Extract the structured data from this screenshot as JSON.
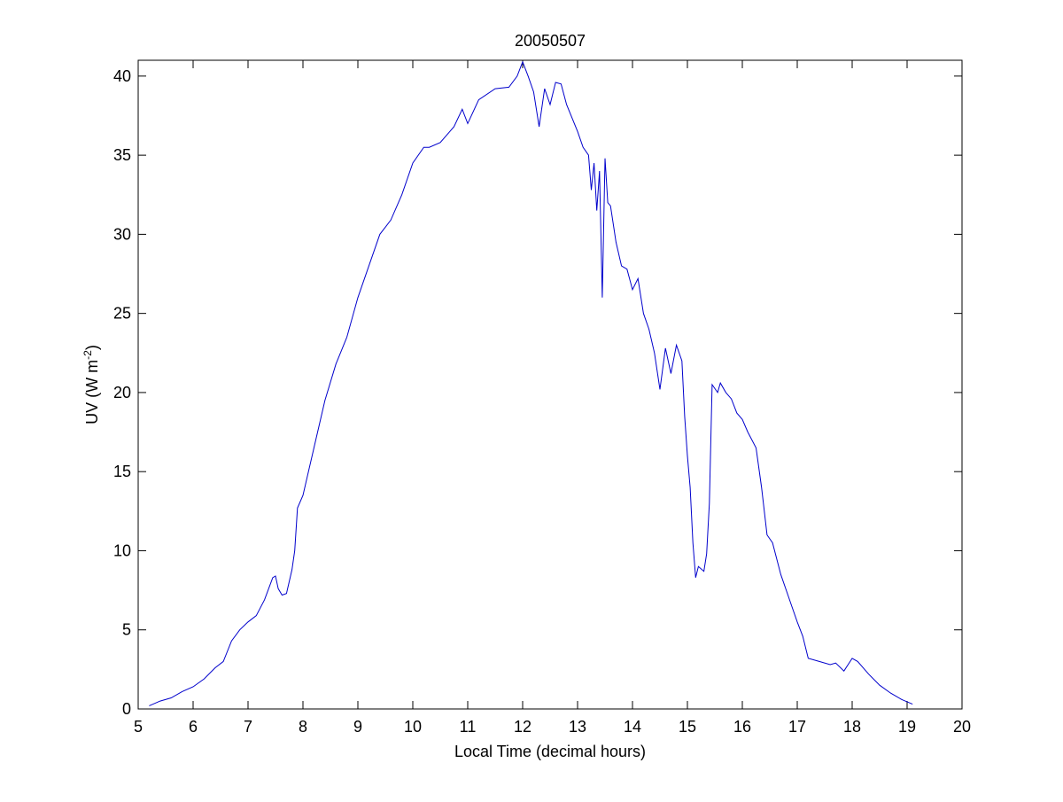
{
  "chart_data": {
    "type": "line",
    "title": "20050507",
    "xlabel": "Local Time (decimal hours)",
    "ylabel_main": "UV (W m",
    "ylabel_sup": "-2",
    "ylabel_close": ")",
    "xlim": [
      5,
      20
    ],
    "ylim": [
      0,
      41
    ],
    "xticks": [
      5,
      6,
      7,
      8,
      9,
      10,
      11,
      12,
      13,
      14,
      15,
      16,
      17,
      18,
      19,
      20
    ],
    "yticks": [
      0,
      5,
      10,
      15,
      20,
      25,
      30,
      35,
      40
    ],
    "grid": false,
    "line_color": "#0000cc",
    "series": [
      {
        "x": [
          5.2,
          5.4,
          5.6,
          5.8,
          6.0,
          6.2,
          6.4,
          6.55,
          6.7,
          6.85,
          7.0,
          7.15,
          7.3,
          7.45,
          7.5,
          7.55,
          7.62,
          7.7,
          7.8,
          7.85,
          7.9,
          8.0,
          8.2,
          8.4,
          8.6,
          8.8,
          9.0,
          9.2,
          9.4,
          9.6,
          9.8,
          10.0,
          10.2,
          10.3,
          10.5,
          10.75,
          10.9,
          11.0,
          11.2,
          11.5,
          11.75,
          11.9,
          12.0,
          12.1,
          12.2,
          12.3,
          12.4,
          12.5,
          12.6,
          12.7,
          12.8,
          13.0,
          13.1,
          13.2,
          13.25,
          13.3,
          13.35,
          13.4,
          13.45,
          13.5,
          13.55,
          13.6,
          13.7,
          13.8,
          13.9,
          14.0,
          14.1,
          14.2,
          14.3,
          14.4,
          14.5,
          14.55,
          14.6,
          14.7,
          14.8,
          14.9,
          14.95,
          15.0,
          15.05,
          15.1,
          15.15,
          15.2,
          15.3,
          15.35,
          15.4,
          15.45,
          15.55,
          15.6,
          15.7,
          15.8,
          15.9,
          16.0,
          16.1,
          16.25,
          16.35,
          16.45,
          16.55,
          16.7,
          16.9,
          17.0,
          17.1,
          17.2,
          17.4,
          17.6,
          17.7,
          17.85,
          18.0,
          18.1,
          18.3,
          18.5,
          18.7,
          18.9,
          19.1
        ],
        "y": [
          0.2,
          0.5,
          0.7,
          1.1,
          1.4,
          1.9,
          2.6,
          3.0,
          4.3,
          5.0,
          5.5,
          5.9,
          6.9,
          8.3,
          8.4,
          7.6,
          7.2,
          7.3,
          8.8,
          10.0,
          12.7,
          13.5,
          16.5,
          19.5,
          21.8,
          23.5,
          26.0,
          28.0,
          30.0,
          30.9,
          32.5,
          34.5,
          35.5,
          35.5,
          35.8,
          36.8,
          37.9,
          37.0,
          38.5,
          39.2,
          39.3,
          40.0,
          40.9,
          40.0,
          39.0,
          36.8,
          39.2,
          38.2,
          39.6,
          39.5,
          38.2,
          36.5,
          35.5,
          35.0,
          32.8,
          34.5,
          31.5,
          34.0,
          26.0,
          34.8,
          32.0,
          31.8,
          29.5,
          28.0,
          27.8,
          26.5,
          27.2,
          25.0,
          24.0,
          22.5,
          20.2,
          21.5,
          22.8,
          21.2,
          23.0,
          22.0,
          18.5,
          16.0,
          14.0,
          10.5,
          8.3,
          9.0,
          8.7,
          9.8,
          13.0,
          20.5,
          20.0,
          20.6,
          20.0,
          19.6,
          18.7,
          18.3,
          17.5,
          16.5,
          14.0,
          11.0,
          10.5,
          8.5,
          6.5,
          5.5,
          4.6,
          3.2,
          3.0,
          2.8,
          2.9,
          2.4,
          3.2,
          3.0,
          2.2,
          1.5,
          1.0,
          0.6,
          0.3
        ]
      }
    ]
  }
}
